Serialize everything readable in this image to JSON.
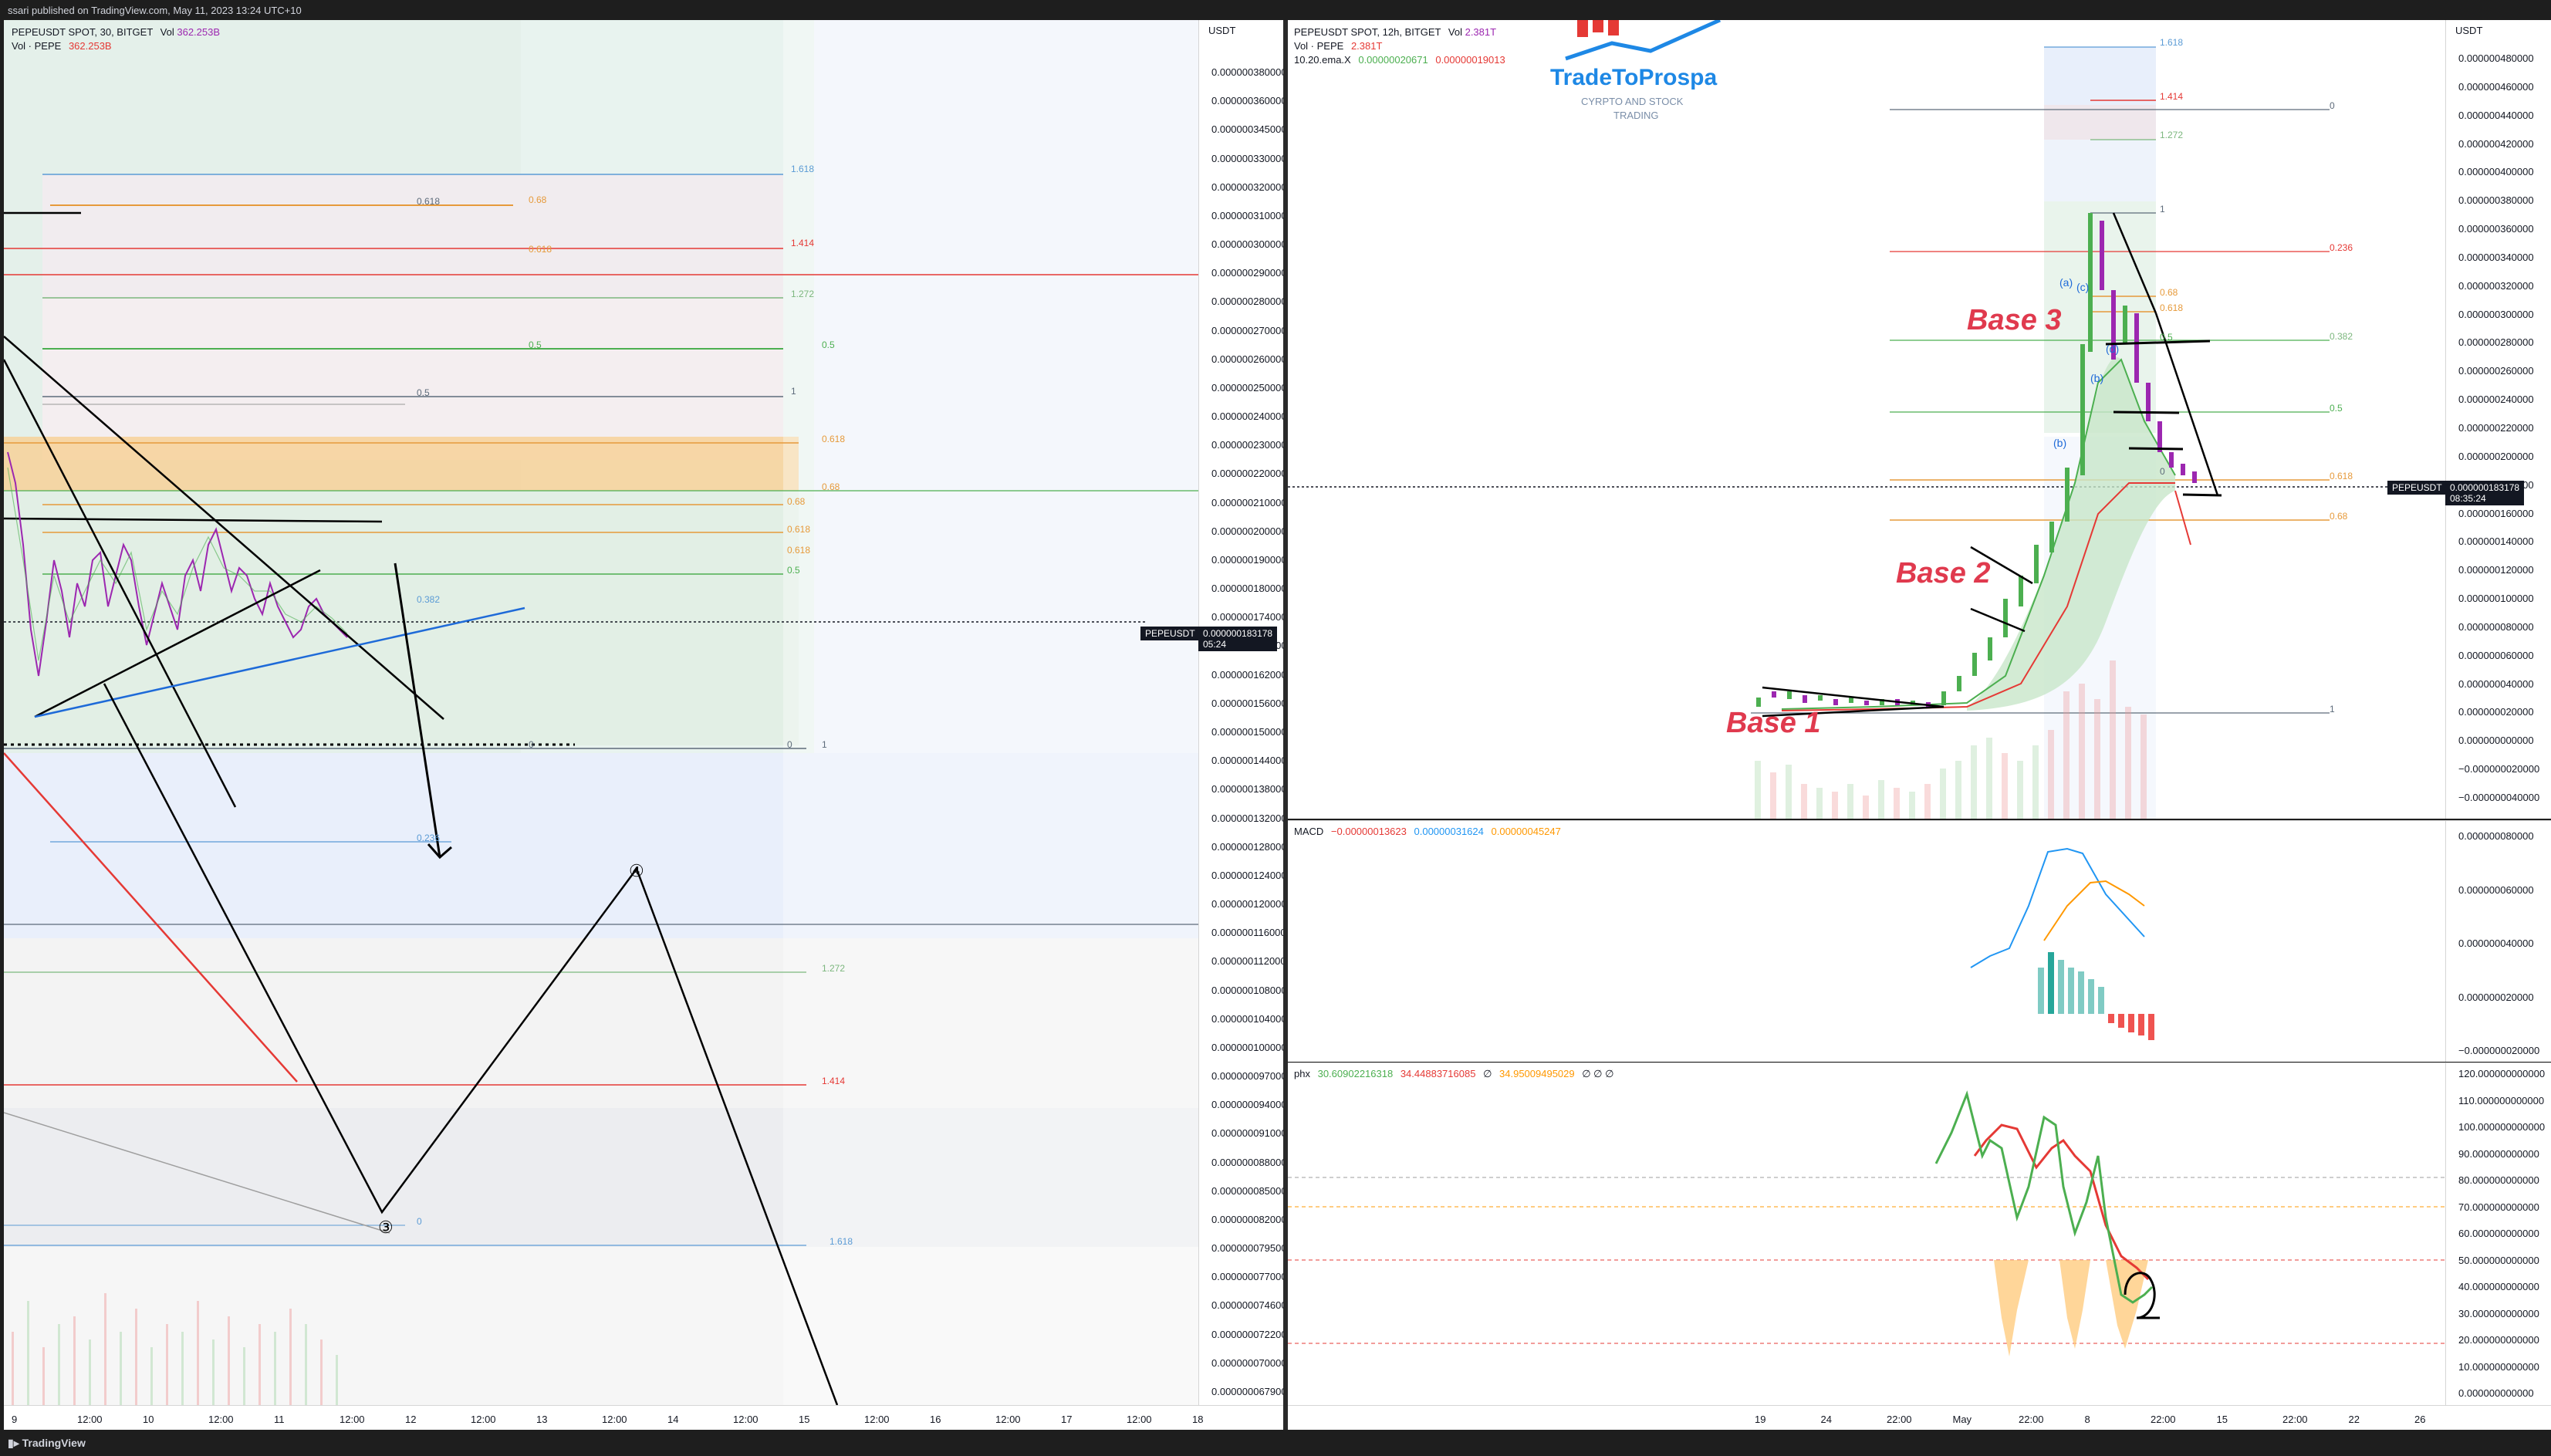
{
  "header": {
    "text": "ssari published on TradingView.com, May 11, 2023 13:24 UTC+10"
  },
  "footer": {
    "logo": "TradingView"
  },
  "left_chart": {
    "symbol": "PEPEUSDT SPOT, 30, BITGET",
    "vol_label": "Vol",
    "vol_value": "362.253B",
    "vol_row_name": "Vol · PEPE",
    "vol_row_value": "362.253B",
    "unit": "USDT",
    "price_tag": "PEPEUSDT",
    "price_value": "0.000000183178",
    "price_countdown": "05:24",
    "price_ticks": [
      "0.000000380000",
      "0.000000360000",
      "0.000000345000",
      "0.000000330000",
      "0.000000320000",
      "0.000000310000",
      "0.000000300000",
      "0.000000290000",
      "0.000000280000",
      "0.000000270000",
      "0.000000260000",
      "0.000000250000",
      "0.000000240000",
      "0.000000230000",
      "0.000000220000",
      "0.000000210000",
      "0.000000200000",
      "0.000000190000",
      "0.000000180000",
      "0.000000174000",
      "0.000000168000",
      "0.000000162000",
      "0.000000156000",
      "0.000000150000",
      "0.000000144000",
      "0.000000138000",
      "0.000000132000",
      "0.000000128000",
      "0.000000124000",
      "0.000000120000",
      "0.000000116000",
      "0.000000112000",
      "0.000000108000",
      "0.000000104000",
      "0.000000100000",
      "0.000000097000",
      "0.000000094000",
      "0.000000091000",
      "0.000000088000",
      "0.000000085000",
      "0.000000082000",
      "0.000000079500",
      "0.000000077000",
      "0.000000074600",
      "0.000000072200",
      "0.000000070000",
      "0.000000067900"
    ],
    "time_ticks": [
      "9",
      "12:00",
      "10",
      "12:00",
      "11",
      "12:00",
      "12",
      "12:00",
      "13",
      "12:00",
      "14",
      "12:00",
      "15",
      "12:00",
      "16",
      "12:00",
      "17",
      "12:00",
      "18"
    ],
    "fib_labels": [
      {
        "t": "1.618",
        "c": "#5b9bd5"
      },
      {
        "t": "0.618",
        "c": "#5d6b7a"
      },
      {
        "t": "0.68",
        "c": "#e69a3b"
      },
      {
        "t": "1.414",
        "c": "#e53935"
      },
      {
        "t": "0.618",
        "c": "#e69a3b"
      },
      {
        "t": "1.272",
        "c": "#7cb77e"
      },
      {
        "t": "0.5",
        "c": "#4caf50"
      },
      {
        "t": "0.5",
        "c": "#4caf50"
      },
      {
        "t": "0.5",
        "c": "#5d6b7a"
      },
      {
        "t": "1",
        "c": "#5d6b7a"
      },
      {
        "t": "0.618",
        "c": "#e69a3b"
      },
      {
        "t": "0.68",
        "c": "#e69a3b"
      },
      {
        "t": "0.68",
        "c": "#e69a3b"
      },
      {
        "t": "0.618",
        "c": "#e69a3b"
      },
      {
        "t": "0.618",
        "c": "#e69a3b"
      },
      {
        "t": "0.5",
        "c": "#4caf50"
      },
      {
        "t": "0.382",
        "c": "#5b9bd5"
      },
      {
        "t": "0",
        "c": "#5d6b7a"
      },
      {
        "t": "0",
        "c": "#5d6b7a"
      },
      {
        "t": "1",
        "c": "#5d6b7a"
      },
      {
        "t": "0.236",
        "c": "#5b9bd5"
      },
      {
        "t": "1.272",
        "c": "#7cb77e"
      },
      {
        "t": "1.414",
        "c": "#e53935"
      },
      {
        "t": "1.618",
        "c": "#5b9bd5"
      },
      {
        "t": "0",
        "c": "#5b9bd5"
      }
    ],
    "wave_labels": [
      "③",
      "④"
    ]
  },
  "right_chart": {
    "symbol": "PEPEUSDT SPOT, 12h, BITGET",
    "vol_label": "Vol",
    "vol_value": "2.381T",
    "vol_row_name": "Vol · PEPE",
    "vol_row_value": "2.381T",
    "ema_name": "10.20.ema.X",
    "ema_v1": "0.00000020671",
    "ema_v2": "0.00000019013",
    "unit": "USDT",
    "price_tag": "PEPEUSDT",
    "price_value": "0.000000183178",
    "price_countdown": "08:35:24",
    "logo_title": "TradeToProspa",
    "logo_sub1": "CYRPTO AND STOCK",
    "logo_sub2": "TRADING",
    "base_labels": [
      "Base 1",
      "Base 2",
      "Base 3"
    ],
    "wave_labels": [
      "(a)",
      "(c)",
      "(b)",
      "(d)",
      "(b)"
    ],
    "fib_labels": [
      {
        "t": "1.618",
        "c": "#5b9bd5"
      },
      {
        "t": "0",
        "c": "#5d6b7a"
      },
      {
        "t": "1.414",
        "c": "#e53935"
      },
      {
        "t": "1.272",
        "c": "#7cb77e"
      },
      {
        "t": "1",
        "c": "#5d6b7a"
      },
      {
        "t": "0.236",
        "c": "#e53935"
      },
      {
        "t": "0.68",
        "c": "#e69a3b"
      },
      {
        "t": "0.618",
        "c": "#e69a3b"
      },
      {
        "t": "0.5",
        "c": "#4caf50"
      },
      {
        "t": "0.382",
        "c": "#7cb77e"
      },
      {
        "t": "0.5",
        "c": "#4caf50"
      },
      {
        "t": "0",
        "c": "#5d6b7a"
      },
      {
        "t": "0.618",
        "c": "#e69a3b"
      },
      {
        "t": "0.68",
        "c": "#e69a3b"
      },
      {
        "t": "1",
        "c": "#5d6b7a"
      }
    ],
    "price_ticks": [
      "0.000000480000",
      "0.000000460000",
      "0.000000440000",
      "0.000000420000",
      "0.000000400000",
      "0.000000380000",
      "0.000000360000",
      "0.000000340000",
      "0.000000320000",
      "0.000000300000",
      "0.000000280000",
      "0.000000260000",
      "0.000000240000",
      "0.000000220000",
      "0.000000200000",
      "0.000000180000",
      "0.000000160000",
      "0.000000140000",
      "0.000000120000",
      "0.000000100000",
      "0.000000080000",
      "0.000000060000",
      "0.000000040000",
      "0.000000020000",
      "0.000000000000",
      "−0.000000020000",
      "−0.000000040000"
    ],
    "time_ticks": [
      "19",
      "24",
      "22:00",
      "May",
      "22:00",
      "8",
      "22:00",
      "15",
      "22:00",
      "22",
      "26"
    ],
    "macd": {
      "name": "MACD",
      "v1": "−0.00000013623",
      "v2": "0.00000031624",
      "v3": "0.00000045247",
      "ticks": [
        "0.000000080000",
        "0.000000060000",
        "0.000000040000",
        "0.000000020000",
        "−0.000000020000"
      ]
    },
    "phx": {
      "name": "phx",
      "v1": "30.60902216318",
      "v2": "34.44883716085",
      "v3": "∅",
      "v4": "34.95009495029",
      "v5": "∅ ∅ ∅",
      "ticks": [
        "120.000000000000",
        "110.000000000000",
        "100.000000000000",
        "90.000000000000",
        "80.000000000000",
        "70.000000000000",
        "60.000000000000",
        "50.000000000000",
        "40.000000000000",
        "30.000000000000",
        "20.000000000000",
        "10.000000000000",
        "0.000000000000"
      ]
    }
  },
  "colors": {
    "up": "#26a69a",
    "down": "#ef5350",
    "candle_up": "#4caf50",
    "candle_down": "#9c27b0",
    "base_label": "#e03a4e",
    "brand": "#1e88e5"
  }
}
